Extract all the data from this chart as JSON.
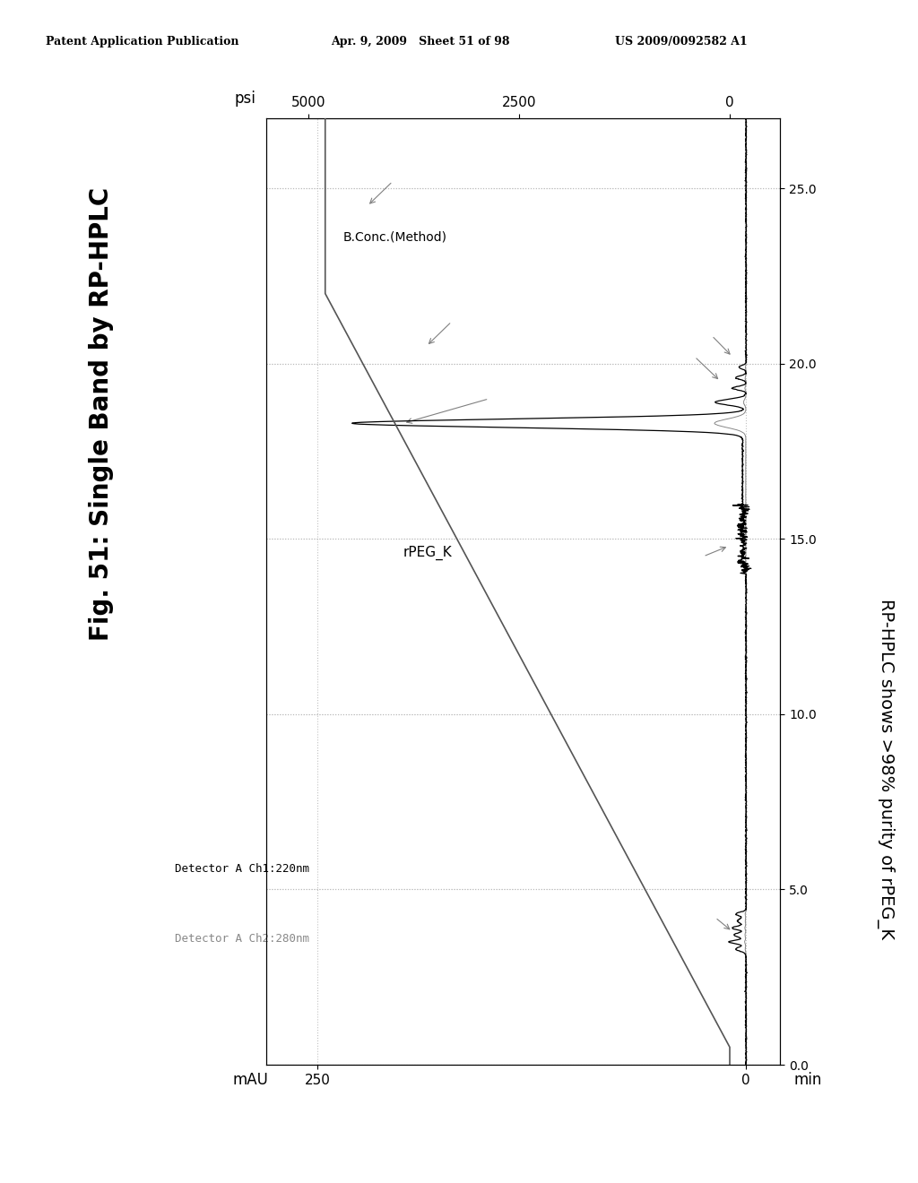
{
  "title": "Fig. 51: Single Band by RP-HPLC",
  "subtitle_rotated": "RP-HPLC shows >98% purity of rPEG_K",
  "header_left": "Patent Application Publication",
  "header_mid": "Apr. 9, 2009   Sheet 51 of 98",
  "header_right": "US 2009/0092582 A1",
  "xlabel": "min",
  "ylabel_left": "mAU",
  "ylabel_right": "psi",
  "xmin": 0.0,
  "xmax": 27.0,
  "yticks_left": [
    0,
    250
  ],
  "yticks_right": [
    0,
    2500,
    5000
  ],
  "xticks": [
    0.0,
    5.0,
    10.0,
    15.0,
    20.0,
    25.0
  ],
  "xtick_labels": [
    "0.0",
    "5.0",
    "10.0",
    "15.0",
    "20.0",
    "25.0"
  ],
  "legend_ch1": "Detector A Ch1:220nm",
  "legend_ch2": "Detector A Ch2:280nm",
  "annotation_rpegk": "rPEG_K",
  "annotation_bconc": "B.Conc.(Method)",
  "bg_color": "#ffffff",
  "line_color_ch1": "#000000",
  "line_color_ch2": "#888888",
  "line_color_gradient": "#555555",
  "grid_color": "#bbbbbb",
  "vline_color": "#bbbbbb"
}
